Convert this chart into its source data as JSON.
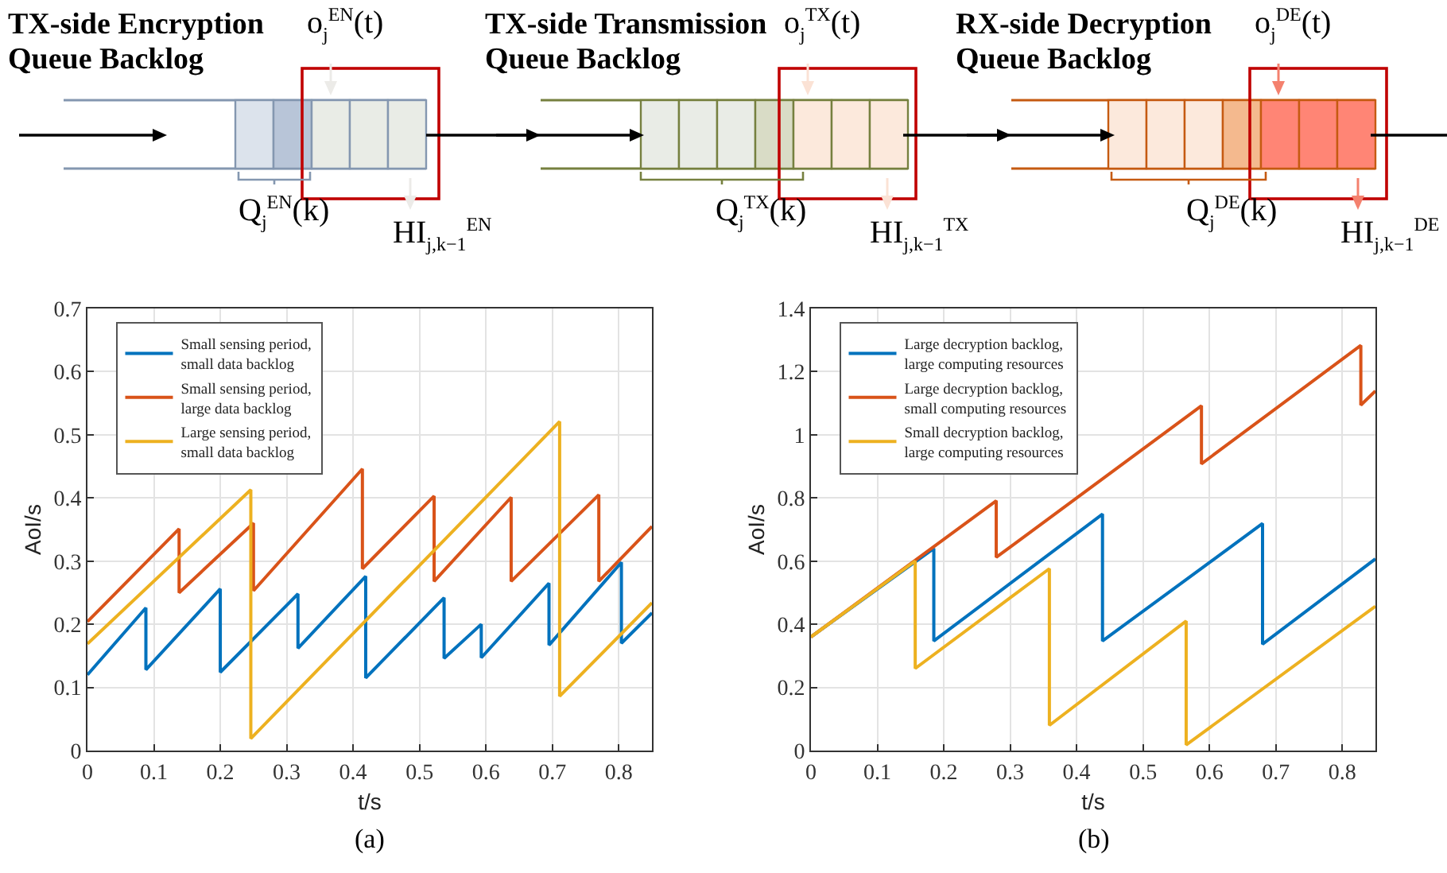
{
  "chart_data": [
    {
      "type": "other",
      "annotations": [
        "TX-side Encryption Queue Backlog",
        "o$_{j}$$^{EN}$(t)",
        "Q$_{j}$$^{EN}$(k)",
        "HI$_{j,k−1}$$^{EN}$",
        "TX-side Transmission Queue Backlog",
        "o$_{j}$$^{TX}$(t)",
        "Q$_{j}$$^{TX}$(k)",
        "HI$_{j,k−1}$$^{TX}$",
        "RX-side Decryption Queue Backlog",
        "o$_{j}$$^{DE}$(t)",
        "Q$_{j}$$^{DE}$(k)",
        "HI$_{j,k−1}$$^{DE}$"
      ]
    },
    {
      "type": "line",
      "xlabel": "t/s",
      "ylabel": "AoI/s",
      "annotations": [
        "(a)"
      ],
      "xlim": [
        0,
        0.85
      ],
      "xticks": [
        0,
        0.1,
        0.2,
        0.3,
        0.4,
        0.5,
        0.6,
        0.7,
        0.8
      ],
      "ylim": [
        0,
        0.7
      ],
      "yticks": [
        0,
        0.1,
        0.2,
        0.3,
        0.4,
        0.5,
        0.6,
        0.7
      ],
      "grid": true,
      "legend": "top left",
      "series": [
        {
          "name": "Small sensing period, small data backlog",
          "color": "#0072bd",
          "x": [
            0,
            0.088,
            0.088,
            0.2,
            0.2,
            0.317,
            0.317,
            0.419,
            0.419,
            0.537,
            0.537,
            0.593,
            0.593,
            0.695,
            0.695,
            0.804,
            0.804,
            0.85
          ],
          "values": [
            0.12,
            0.226,
            0.128,
            0.256,
            0.124,
            0.248,
            0.162,
            0.276,
            0.115,
            0.242,
            0.146,
            0.2,
            0.147,
            0.265,
            0.167,
            0.298,
            0.17,
            0.218
          ]
        },
        {
          "name": "Small sensing period, large data backlog",
          "color": "#d95319",
          "x": [
            0,
            0.138,
            0.138,
            0.25,
            0.25,
            0.414,
            0.414,
            0.522,
            0.522,
            0.638,
            0.638,
            0.77,
            0.77,
            0.85
          ],
          "values": [
            0.204,
            0.351,
            0.25,
            0.36,
            0.253,
            0.446,
            0.288,
            0.403,
            0.268,
            0.401,
            0.268,
            0.405,
            0.268,
            0.355
          ]
        },
        {
          "name": "Large sensing period, small data backlog",
          "color": "#edb120",
          "x": [
            0,
            0.246,
            0.246,
            0.711,
            0.711,
            0.85
          ],
          "values": [
            0.169,
            0.413,
            0.019,
            0.521,
            0.086,
            0.234
          ]
        }
      ]
    },
    {
      "type": "line",
      "xlabel": "t/s",
      "ylabel": "AoI/s",
      "annotations": [
        "(b)"
      ],
      "xlim": [
        0,
        0.85
      ],
      "xticks": [
        0,
        0.1,
        0.2,
        0.3,
        0.4,
        0.5,
        0.6,
        0.7,
        0.8
      ],
      "ylim": [
        0,
        1.4
      ],
      "yticks": [
        0,
        0.2,
        0.4,
        0.6,
        0.8,
        1,
        1.2,
        1.4
      ],
      "grid": true,
      "legend": "top left",
      "series": [
        {
          "name": "Large decryption backlog, large computing resources",
          "color": "#0072bd",
          "x": [
            0,
            0.185,
            0.185,
            0.439,
            0.439,
            0.68,
            0.68,
            0.85
          ],
          "values": [
            0.36,
            0.64,
            0.347,
            0.749,
            0.347,
            0.719,
            0.337,
            0.607
          ]
        },
        {
          "name": "Large decryption backlog, small computing resources",
          "color": "#d95319",
          "x": [
            0,
            0.279,
            0.279,
            0.588,
            0.588,
            0.828,
            0.828,
            0.85
          ],
          "values": [
            0.36,
            0.791,
            0.612,
            1.092,
            0.908,
            1.283,
            1.094,
            1.139
          ]
        },
        {
          "name": "Small decryption backlog, large computing resources",
          "color": "#edb120",
          "x": [
            0,
            0.157,
            0.157,
            0.359,
            0.359,
            0.565,
            0.565,
            0.85
          ],
          "values": [
            0.36,
            0.6,
            0.26,
            0.576,
            0.08,
            0.41,
            0.018,
            0.457
          ]
        }
      ]
    }
  ]
}
